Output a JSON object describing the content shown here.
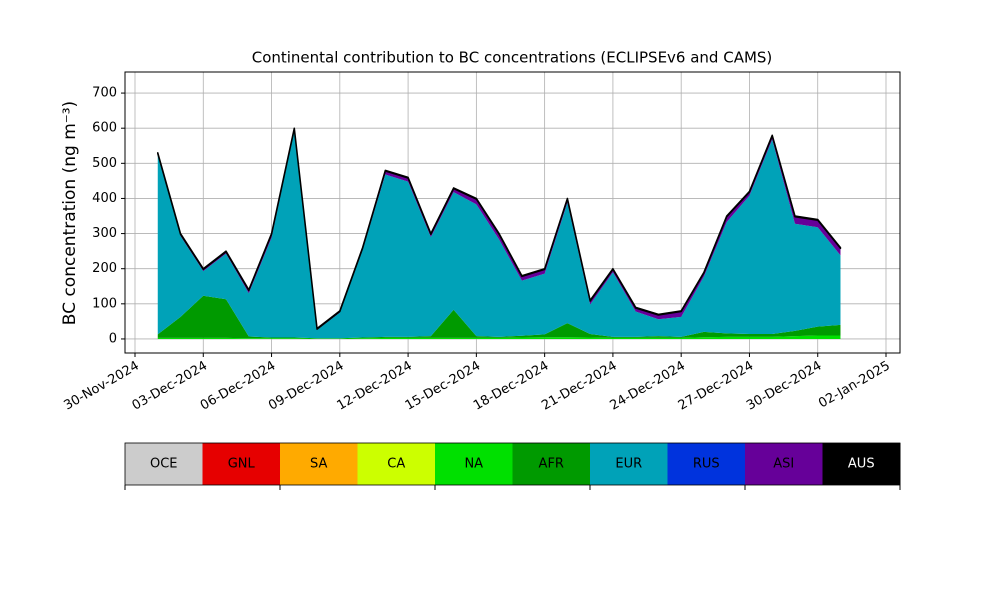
{
  "chart_data": {
    "type": "stacked_area",
    "title": "Continental contribution to BC concentrations (ECLIPSEv6 and CAMS)",
    "y_label": "BC concentration (ng m⁻³)",
    "x": [
      "2024-12-01",
      "2024-12-02",
      "2024-12-03",
      "2024-12-04",
      "2024-12-05",
      "2024-12-06",
      "2024-12-07",
      "2024-12-08",
      "2024-12-09",
      "2024-12-10",
      "2024-12-11",
      "2024-12-12",
      "2024-12-13",
      "2024-12-14",
      "2024-12-15",
      "2024-12-16",
      "2024-12-17",
      "2024-12-18",
      "2024-12-19",
      "2024-12-20",
      "2024-12-21",
      "2024-12-22",
      "2024-12-23",
      "2024-12-24",
      "2024-12-25",
      "2024-12-26",
      "2024-12-27",
      "2024-12-28",
      "2024-12-29",
      "2024-12-30",
      "2024-12-31"
    ],
    "xlim": [
      "2024-11-30",
      "2025-01-02"
    ],
    "xticks": [
      {
        "value": "2024-11-30",
        "label": "30-Nov-2024"
      },
      {
        "value": "2024-12-03",
        "label": "03-Dec-2024"
      },
      {
        "value": "2024-12-06",
        "label": "06-Dec-2024"
      },
      {
        "value": "2024-12-09",
        "label": "09-Dec-2024"
      },
      {
        "value": "2024-12-12",
        "label": "12-Dec-2024"
      },
      {
        "value": "2024-12-15",
        "label": "15-Dec-2024"
      },
      {
        "value": "2024-12-18",
        "label": "18-Dec-2024"
      },
      {
        "value": "2024-12-21",
        "label": "21-Dec-2024"
      },
      {
        "value": "2024-12-24",
        "label": "24-Dec-2024"
      },
      {
        "value": "2024-12-27",
        "label": "27-Dec-2024"
      },
      {
        "value": "2024-12-30",
        "label": "30-Dec-2024"
      },
      {
        "value": "2025-01-02",
        "label": "02-Jan-2025"
      }
    ],
    "ylim": [
      -40,
      760
    ],
    "yticks": [
      0,
      100,
      200,
      300,
      400,
      500,
      600,
      700
    ],
    "grid": true,
    "series": [
      {
        "name": "OCE",
        "color": "#cccccc",
        "values": [
          0,
          0,
          0,
          0,
          0,
          0,
          0,
          0,
          0,
          0,
          0,
          0,
          0,
          0,
          0,
          0,
          0,
          0,
          0,
          0,
          0,
          0,
          0,
          0,
          0,
          0,
          0,
          0,
          0,
          0,
          0
        ]
      },
      {
        "name": "GNL",
        "color": "#e60000",
        "values": [
          0,
          0,
          0,
          0,
          0,
          0,
          0,
          0,
          0,
          0,
          0,
          0,
          0,
          0,
          0,
          0,
          0,
          0,
          0,
          0,
          0,
          0,
          0,
          0,
          0,
          0,
          0,
          0,
          0,
          0,
          0
        ]
      },
      {
        "name": "SA",
        "color": "#ffaa00",
        "values": [
          0,
          0,
          0,
          0,
          0,
          0,
          0,
          0,
          0,
          0,
          0,
          0,
          0,
          0,
          0,
          0,
          0,
          0,
          0,
          0,
          0,
          0,
          0,
          0,
          0,
          0,
          0,
          0,
          0,
          0,
          0
        ]
      },
      {
        "name": "CA",
        "color": "#ccff00",
        "values": [
          0,
          0,
          0,
          0,
          0,
          0,
          0,
          0,
          0,
          0,
          0,
          0,
          0,
          0,
          0,
          0,
          0,
          0,
          0,
          0,
          0,
          0,
          0,
          0,
          0,
          0,
          0,
          0,
          0,
          0,
          0
        ]
      },
      {
        "name": "NA",
        "color": "#00e000",
        "values": [
          3,
          3,
          3,
          3,
          2,
          2,
          2,
          1,
          1,
          2,
          3,
          3,
          3,
          3,
          3,
          3,
          4,
          5,
          5,
          4,
          3,
          3,
          3,
          3,
          5,
          6,
          6,
          6,
          8,
          10,
          10
        ]
      },
      {
        "name": "AFR",
        "color": "#009a00",
        "values": [
          10,
          60,
          120,
          110,
          5,
          2,
          2,
          1,
          1,
          2,
          3,
          3,
          5,
          80,
          5,
          3,
          5,
          8,
          40,
          10,
          3,
          3,
          5,
          3,
          15,
          10,
          8,
          8,
          15,
          25,
          30
        ]
      },
      {
        "name": "EUR",
        "color": "#00a2b8",
        "values": [
          510,
          230,
          70,
          130,
          123,
          284,
          589,
          24,
          73,
          249,
          462,
          442,
          282,
          335,
          375,
          277,
          157,
          173,
          343,
          84,
          184,
          72,
          48,
          57,
          158,
          317,
          394,
          554,
          305,
          283,
          198
        ]
      },
      {
        "name": "RUS",
        "color": "#0033dd",
        "values": [
          0,
          0,
          0,
          0,
          0,
          0,
          0,
          0,
          0,
          0,
          0,
          0,
          0,
          0,
          0,
          0,
          0,
          0,
          0,
          0,
          0,
          0,
          0,
          0,
          0,
          0,
          0,
          0,
          0,
          0,
          0
        ]
      },
      {
        "name": "ASI",
        "color": "#660099",
        "values": [
          5,
          5,
          5,
          5,
          8,
          10,
          5,
          2,
          3,
          5,
          10,
          10,
          8,
          10,
          15,
          15,
          12,
          12,
          10,
          10,
          8,
          10,
          12,
          15,
          10,
          15,
          10,
          10,
          20,
          20,
          20
        ]
      },
      {
        "name": "AUS",
        "color": "#000000",
        "values": [
          2,
          2,
          2,
          2,
          2,
          2,
          2,
          2,
          2,
          2,
          2,
          2,
          2,
          2,
          2,
          2,
          2,
          2,
          2,
          2,
          2,
          2,
          2,
          2,
          2,
          2,
          2,
          2,
          2,
          2,
          2
        ]
      }
    ]
  }
}
